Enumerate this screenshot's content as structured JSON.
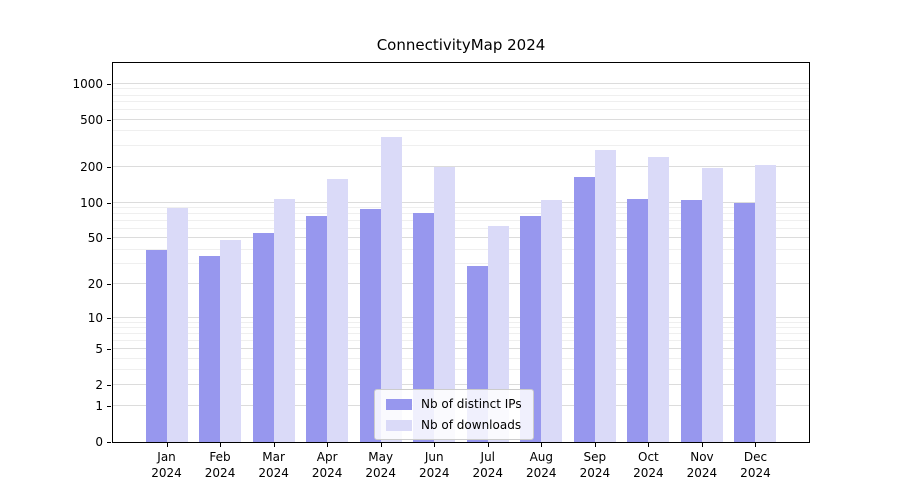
{
  "chart_data": {
    "type": "bar",
    "title": "ConnectivityMap 2024",
    "categories": [
      "Jan 2024",
      "Feb 2024",
      "Mar 2024",
      "Apr 2024",
      "May 2024",
      "Jun 2024",
      "Jul 2024",
      "Aug 2024",
      "Sep 2024",
      "Oct 2024",
      "Nov 2024",
      "Dec 2024"
    ],
    "series": [
      {
        "name": "Nb of distinct IPs",
        "color": "#9797ee",
        "values": [
          40,
          35,
          55,
          78,
          88,
          82,
          29,
          78,
          165,
          108,
          105,
          100
        ]
      },
      {
        "name": "Nb of downloads",
        "color": "#dadaf8",
        "values": [
          90,
          48,
          108,
          160,
          360,
          200,
          64,
          105,
          280,
          245,
          198,
          210
        ]
      }
    ],
    "yticks": [
      0,
      1,
      2,
      5,
      10,
      20,
      50,
      100,
      200,
      500,
      1000
    ],
    "ylim": [
      0,
      1500
    ],
    "scale": "log1p",
    "grid": "horizontal",
    "legend_position": "lower center",
    "xlabel": "",
    "ylabel": ""
  }
}
